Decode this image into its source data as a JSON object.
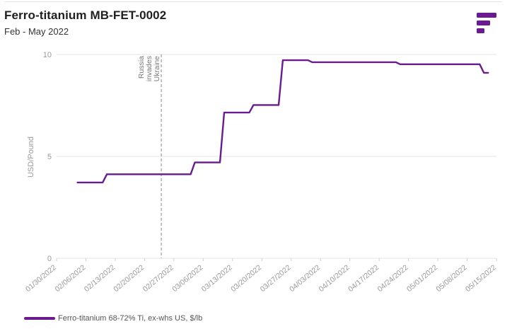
{
  "header": {
    "title": "Ferro-titanium MB-FET-0002",
    "subtitle": "Feb - May 2022"
  },
  "colors": {
    "series": "#6a1b8f",
    "logo": "#6a1b8f",
    "grid": "#e6e6e6",
    "axis_text": "#9a9a9a",
    "annotation_line": "#9a9a9a"
  },
  "icons": {
    "logo": "fastmarkets-logo-icon"
  },
  "chart_data": {
    "type": "line",
    "ylabel": "USD/Pound",
    "xlabel": "",
    "ylim": [
      0,
      10
    ],
    "yticks": [
      0,
      5,
      10
    ],
    "grid": "horizontal",
    "xlim": [
      "2022-01-30",
      "2022-05-15"
    ],
    "xticks": [
      "01/30/2022",
      "02/06/2022",
      "02/13/2022",
      "02/20/2022",
      "02/27/2022",
      "03/06/2022",
      "03/13/2022",
      "03/20/2022",
      "03/27/2022",
      "04/03/2022",
      "04/10/2022",
      "04/17/2022",
      "04/24/2022",
      "05/01/2022",
      "05/08/2022",
      "05/15/2022"
    ],
    "annotations": [
      {
        "x": "2022-02-24",
        "label": [
          "Russia",
          "invades",
          "Ukraine"
        ]
      }
    ],
    "legend": "bottom-left",
    "series": [
      {
        "name": "Ferro-titanium 68-72% Ti, ex-whs US, $/lb",
        "points": [
          [
            "2022-02-04",
            3.72
          ],
          [
            "2022-02-07",
            3.72
          ],
          [
            "2022-02-10",
            3.72
          ],
          [
            "2022-02-11",
            4.12
          ],
          [
            "2022-02-14",
            4.12
          ],
          [
            "2022-02-17",
            4.12
          ],
          [
            "2022-02-21",
            4.12
          ],
          [
            "2022-02-24",
            4.12
          ],
          [
            "2022-02-28",
            4.12
          ],
          [
            "2022-03-03",
            4.12
          ],
          [
            "2022-03-04",
            4.7
          ],
          [
            "2022-03-07",
            4.7
          ],
          [
            "2022-03-10",
            4.7
          ],
          [
            "2022-03-11",
            7.15
          ],
          [
            "2022-03-14",
            7.15
          ],
          [
            "2022-03-17",
            7.15
          ],
          [
            "2022-03-18",
            7.52
          ],
          [
            "2022-03-21",
            7.52
          ],
          [
            "2022-03-24",
            7.52
          ],
          [
            "2022-03-25",
            9.72
          ],
          [
            "2022-03-28",
            9.72
          ],
          [
            "2022-03-31",
            9.72
          ],
          [
            "2022-04-01",
            9.62
          ],
          [
            "2022-04-04",
            9.62
          ],
          [
            "2022-04-07",
            9.62
          ],
          [
            "2022-04-11",
            9.62
          ],
          [
            "2022-04-14",
            9.62
          ],
          [
            "2022-04-18",
            9.62
          ],
          [
            "2022-04-21",
            9.62
          ],
          [
            "2022-04-22",
            9.52
          ],
          [
            "2022-04-25",
            9.52
          ],
          [
            "2022-04-28",
            9.52
          ],
          [
            "2022-05-02",
            9.52
          ],
          [
            "2022-05-05",
            9.52
          ],
          [
            "2022-05-09",
            9.52
          ],
          [
            "2022-05-11",
            9.52
          ],
          [
            "2022-05-12",
            9.1
          ],
          [
            "2022-05-13",
            9.1
          ]
        ]
      }
    ]
  }
}
